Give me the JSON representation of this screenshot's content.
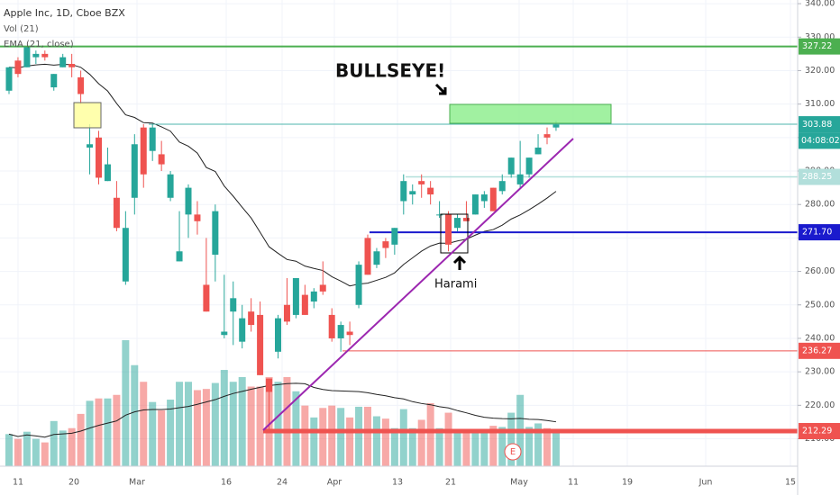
{
  "chart_data": {
    "type": "candlestick",
    "title": "Apple Inc, 1D, Cboe BZX",
    "indicators": [
      "Vol (21)",
      "EMA (21, close)"
    ],
    "open": [
      314,
      323,
      321,
      324,
      325,
      315,
      321,
      322,
      318,
      297,
      300,
      287,
      282,
      257,
      282,
      303,
      296,
      295,
      282,
      263,
      277,
      277,
      256,
      265,
      241,
      248,
      239,
      248,
      247,
      228,
      236,
      250,
      247,
      253,
      251,
      256,
      247,
      240,
      242,
      250,
      270,
      262,
      269,
      268,
      281,
      283,
      287,
      285,
      277,
      277,
      273,
      276,
      277,
      281,
      285,
      284,
      289,
      286,
      289,
      295,
      301,
      303
    ],
    "high": [
      321,
      324,
      327,
      326,
      326,
      319,
      325,
      325,
      320,
      304,
      302,
      297,
      287,
      278,
      301,
      304,
      304,
      299,
      290,
      278,
      286,
      281,
      270,
      280,
      259,
      257,
      250,
      252,
      251,
      228,
      247,
      258,
      258,
      256,
      255,
      263,
      249,
      245,
      245,
      263,
      271,
      267,
      270,
      273,
      289,
      286,
      289,
      287,
      281,
      278,
      277,
      281,
      283,
      284,
      285,
      289,
      294,
      299,
      294,
      301,
      303,
      305
    ],
    "low": [
      313,
      318,
      321,
      322,
      323,
      314,
      321,
      318,
      310,
      289,
      286,
      287,
      272,
      256,
      277,
      285,
      293,
      290,
      281,
      263,
      270,
      271,
      248,
      257,
      240,
      238,
      237,
      242,
      229,
      212,
      234,
      244,
      246,
      247,
      249,
      253,
      239,
      236,
      238,
      249,
      259,
      261,
      264,
      265,
      277,
      280,
      282,
      280,
      276,
      266,
      272,
      275,
      277,
      279,
      278,
      283,
      288,
      285,
      288,
      295,
      298,
      302
    ],
    "close": [
      321,
      319,
      327,
      325,
      324,
      319,
      324,
      321,
      313,
      298,
      288,
      292,
      273,
      273,
      298,
      289,
      303,
      292,
      289,
      266,
      285,
      275,
      248,
      278,
      242,
      252,
      246,
      244,
      229,
      224,
      246,
      245,
      258,
      247,
      254,
      254,
      240,
      244,
      241,
      262,
      259,
      266,
      267,
      273,
      287,
      284,
      286,
      283,
      277,
      268,
      276,
      275,
      283,
      283,
      278,
      287,
      294,
      289,
      294,
      297,
      300,
      303.88
    ],
    "volume": [
      27,
      23,
      29,
      23,
      20,
      38,
      30,
      32,
      44,
      55,
      57,
      57,
      60,
      106,
      85,
      71,
      54,
      47,
      56,
      71,
      71,
      64,
      65,
      70,
      81,
      71,
      75,
      67,
      67,
      75,
      71,
      75,
      63,
      51,
      41,
      49,
      51,
      49,
      41,
      50,
      50,
      42,
      40,
      32,
      48,
      32,
      39,
      53,
      32,
      45,
      29,
      31,
      31,
      29,
      34,
      33,
      45,
      60,
      33,
      36,
      32,
      28
    ],
    "up_color": "#26a69a",
    "down_color": "#ef5350",
    "ylim": [
      201.8,
      341.1
    ],
    "yticks": [
      {
        "value": 210,
        "label": "210.00"
      },
      {
        "value": 220,
        "label": "220.00"
      },
      {
        "value": 230,
        "label": "230.00"
      },
      {
        "value": 240,
        "label": "240.00"
      },
      {
        "value": 250,
        "label": "250.00"
      },
      {
        "value": 260,
        "label": "260.00"
      },
      {
        "value": 270,
        "label": "270.00"
      },
      {
        "value": 280,
        "label": "280.00"
      },
      {
        "value": 290,
        "label": "290.00"
      },
      {
        "value": 300,
        "label": "300.00"
      },
      {
        "value": 310,
        "label": "310.00"
      },
      {
        "value": 320,
        "label": "320.00"
      },
      {
        "value": 330,
        "label": "330.00"
      },
      {
        "value": 340,
        "label": "340.00"
      }
    ],
    "x_labels": [
      "11",
      "20",
      "Mar",
      "16",
      "24",
      "Apr",
      "13",
      "21",
      "May",
      "11",
      "19",
      "Jun",
      "15"
    ],
    "price_lines": [
      {
        "value": 327.22,
        "color": "#4caf50"
      },
      {
        "value": 304,
        "label": "304.00",
        "color": "#4db6ac"
      },
      {
        "value": 303.88,
        "color": "#26a69a"
      },
      {
        "value": 288.25,
        "color": "#b2dfdb"
      },
      {
        "value": 271.7,
        "label": "271.70",
        "color": "#1a1acd"
      },
      {
        "value": 236.27,
        "color": "#ef5350"
      },
      {
        "value": 212.29,
        "color": "#ef5350"
      }
    ],
    "countdown": "04:08:02",
    "annotations": {
      "bullseye": "BULLSEYE!",
      "harami": "Harami",
      "earnings": "E"
    }
  }
}
